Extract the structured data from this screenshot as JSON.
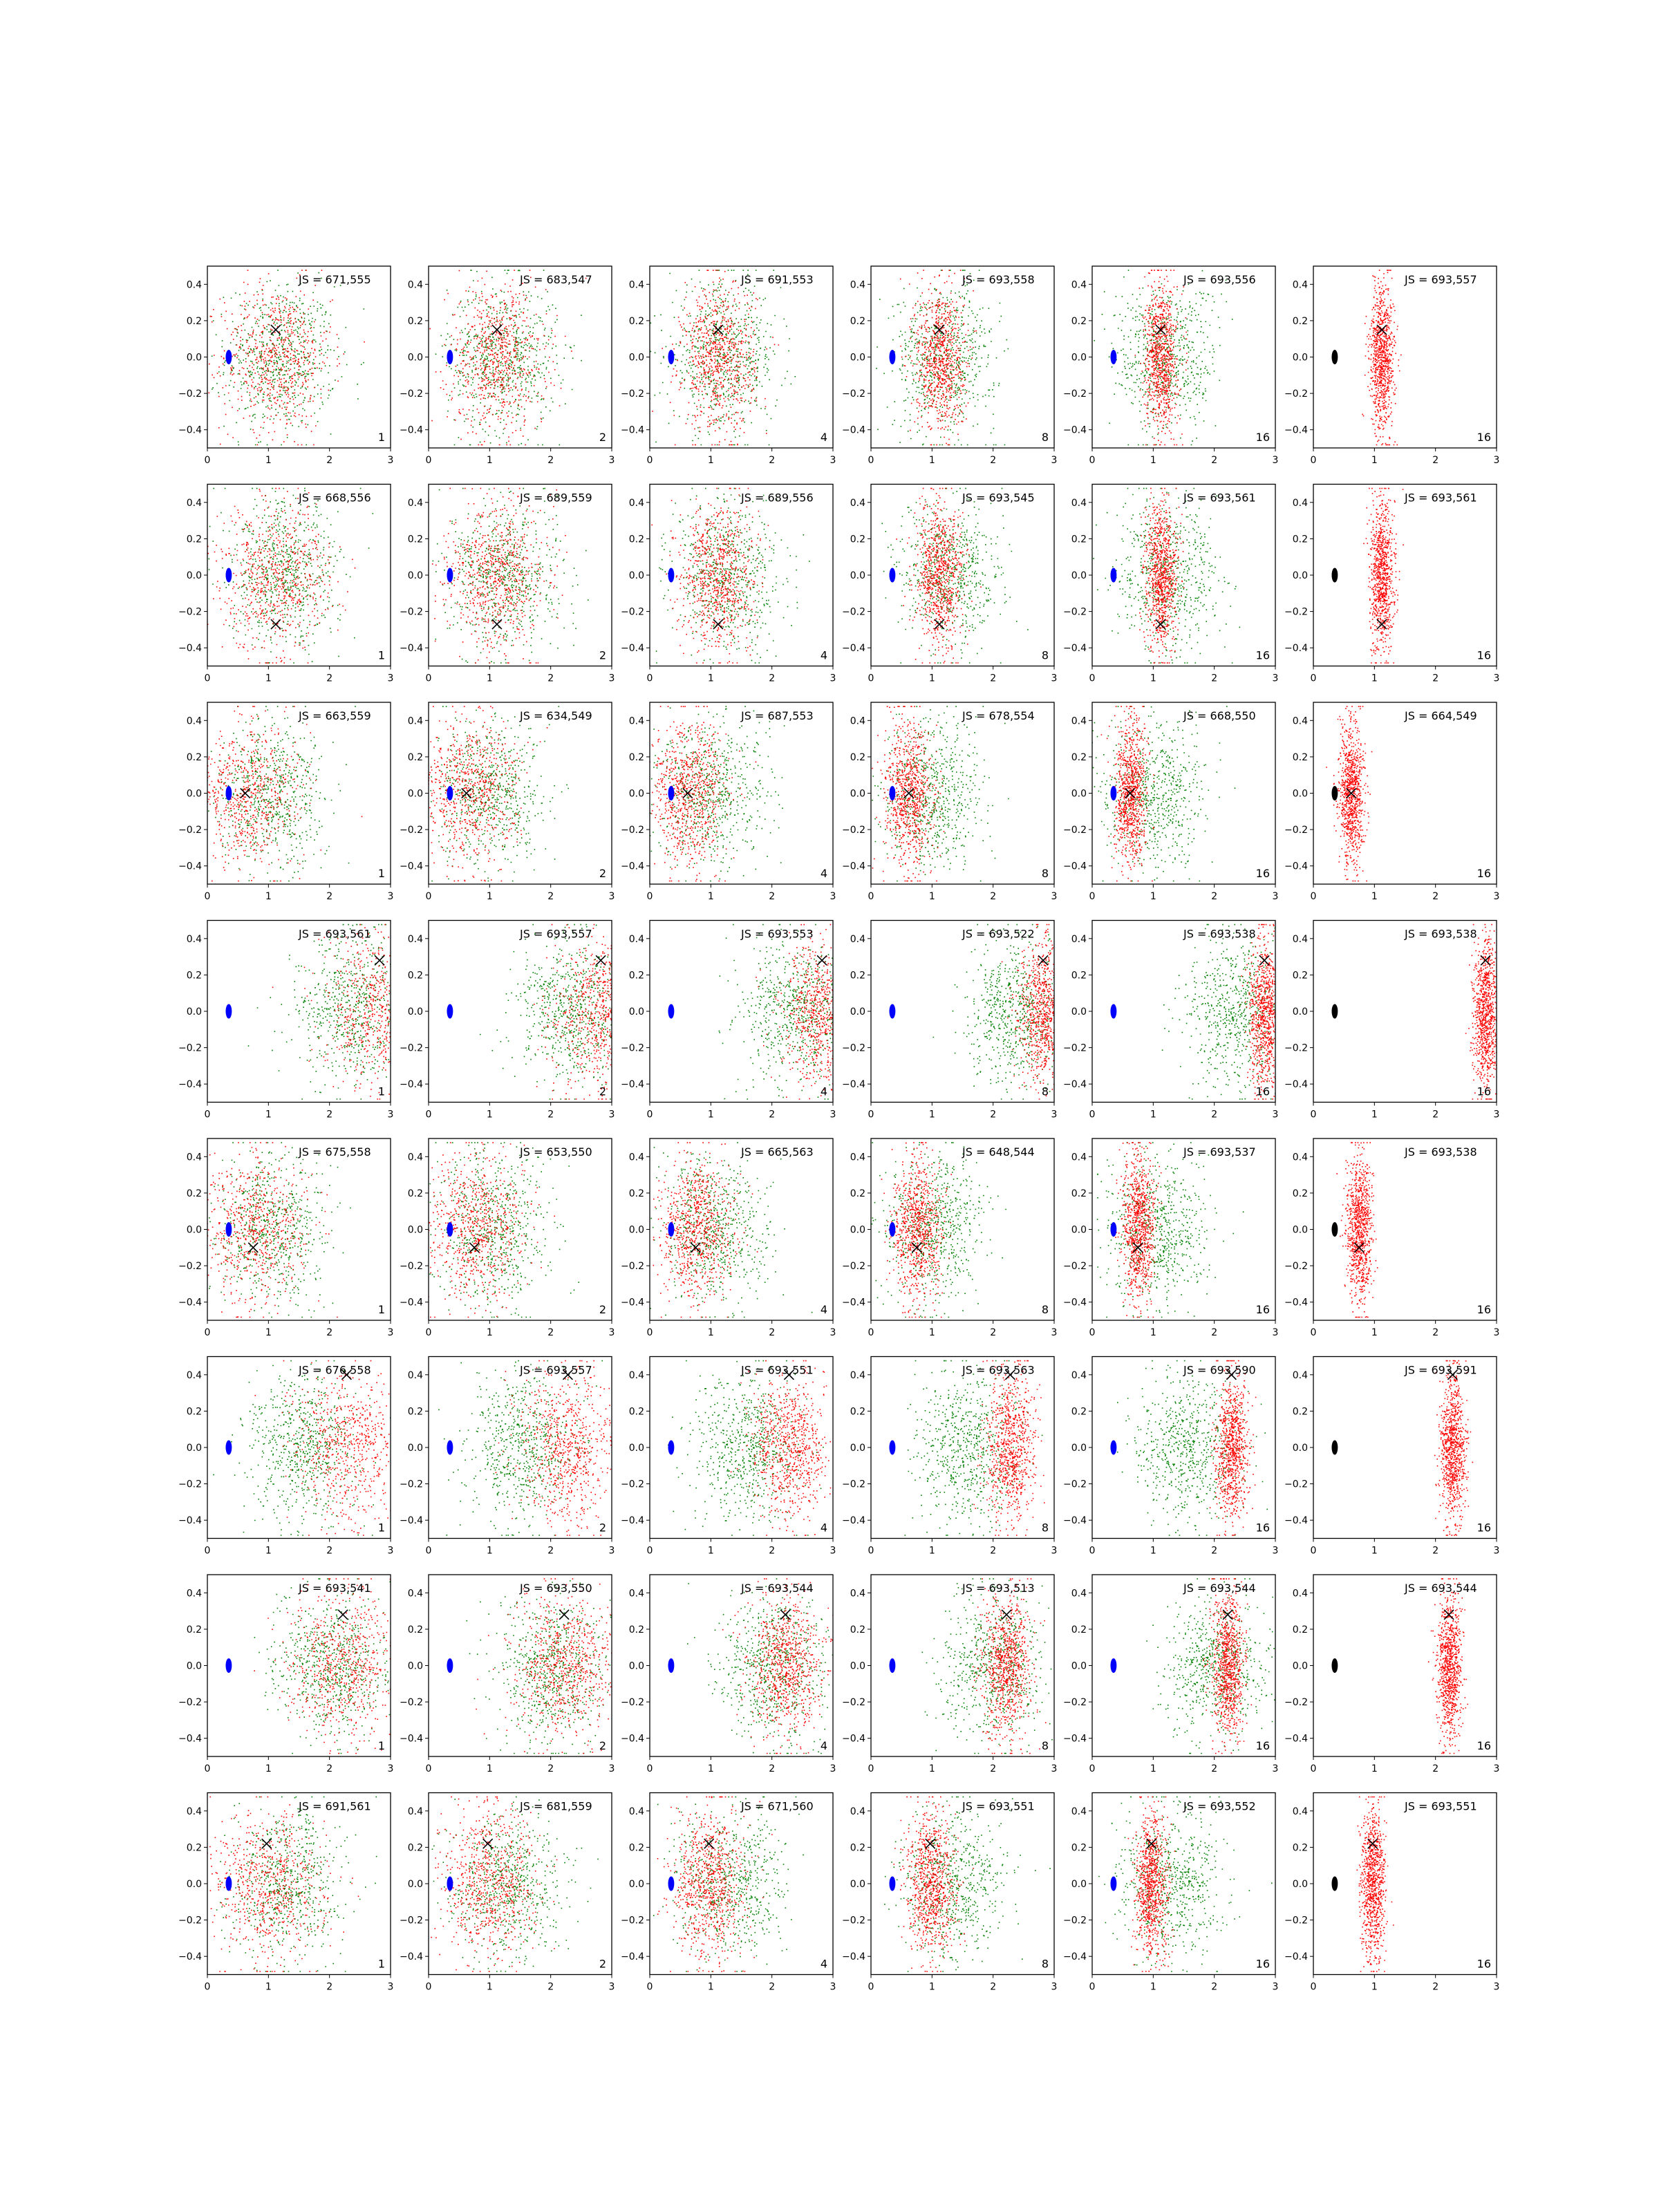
{
  "figure": {
    "rows": 8,
    "cols": 6,
    "colors": {
      "red_points": "#ff0000",
      "green_points": "#008000",
      "blue_ellipse": "#0000ff",
      "black_ellipse": "#000000",
      "cross": "#000000",
      "axes": "#000000"
    }
  },
  "chart_data": {
    "type": "scatter",
    "xlim": [
      0,
      3
    ],
    "ylim": [
      -0.5,
      0.5
    ],
    "xticks": [
      0,
      1,
      2,
      3
    ],
    "yticks": [
      0.4,
      0.2,
      0.0,
      -0.2,
      -0.4
    ],
    "xtick_labels": [
      "0",
      "1",
      "2",
      "3"
    ],
    "ytick_labels": [
      "0.4",
      "0.2",
      "0.0",
      "−0.2",
      "−0.4"
    ],
    "grid": false,
    "rows": [
      {
        "cross": [
          1.12,
          0.15
        ],
        "green_center": 1.2,
        "panels": [
          {
            "js": "JS = 671,555",
            "label": "1"
          },
          {
            "js": "JS = 683,547",
            "label": "2"
          },
          {
            "js": "JS = 691,553",
            "label": "4"
          },
          {
            "js": "JS = 693,558",
            "label": "8"
          },
          {
            "js": "JS = 693,556",
            "label": "16"
          },
          {
            "js": "JS = 693,557",
            "label": "16"
          }
        ]
      },
      {
        "cross": [
          1.12,
          -0.27
        ],
        "green_center": 1.25,
        "panels": [
          {
            "js": "JS = 668,556",
            "label": "1"
          },
          {
            "js": "JS = 689,559",
            "label": "2"
          },
          {
            "js": "JS = 689,556",
            "label": "4"
          },
          {
            "js": "JS = 693,545",
            "label": "8"
          },
          {
            "js": "JS = 693,561",
            "label": "16"
          },
          {
            "js": "JS = 693,561",
            "label": "16"
          }
        ]
      },
      {
        "cross": [
          0.62,
          0.0
        ],
        "green_center": 1.0,
        "panels": [
          {
            "js": "JS = 663,559",
            "label": "1"
          },
          {
            "js": "JS = 634,549",
            "label": "2"
          },
          {
            "js": "JS = 687,553",
            "label": "4"
          },
          {
            "js": "JS = 678,554",
            "label": "8"
          },
          {
            "js": "JS = 668,550",
            "label": "16"
          },
          {
            "js": "JS = 664,549",
            "label": "16"
          }
        ]
      },
      {
        "cross": [
          2.82,
          0.28
        ],
        "green_center": 2.35,
        "panels": [
          {
            "js": "JS = 693,561",
            "label": "1"
          },
          {
            "js": "JS = 693,557",
            "label": "2"
          },
          {
            "js": "JS = 693,553",
            "label": "4"
          },
          {
            "js": "JS = 693,522",
            "label": "8"
          },
          {
            "js": "JS = 693,538",
            "label": "16"
          },
          {
            "js": "JS = 693,538",
            "label": "16"
          }
        ]
      },
      {
        "cross": [
          0.75,
          -0.1
        ],
        "green_center": 1.05,
        "panels": [
          {
            "js": "JS = 675,558",
            "label": "1"
          },
          {
            "js": "JS = 653,550",
            "label": "2"
          },
          {
            "js": "JS = 665,563",
            "label": "4"
          },
          {
            "js": "JS = 648,544",
            "label": "8"
          },
          {
            "js": "JS = 693,537",
            "label": "16"
          },
          {
            "js": "JS = 693,538",
            "label": "16"
          }
        ]
      },
      {
        "cross": [
          2.28,
          0.4
        ],
        "green_center": 1.55,
        "panels": [
          {
            "js": "JS = 676,558",
            "label": "1"
          },
          {
            "js": "JS = 693,557",
            "label": "2"
          },
          {
            "js": "JS = 693,551",
            "label": "4"
          },
          {
            "js": "JS = 693,563",
            "label": "8"
          },
          {
            "js": "JS = 693,590",
            "label": "16"
          },
          {
            "js": "JS = 693,591",
            "label": "16"
          }
        ]
      },
      {
        "cross": [
          2.22,
          0.28
        ],
        "green_center": 2.0,
        "panels": [
          {
            "js": "JS = 693,541",
            "label": "1"
          },
          {
            "js": "JS = 693,550",
            "label": "2"
          },
          {
            "js": "JS = 693,544",
            "label": "4"
          },
          {
            "js": "JS = 693,513",
            "label": "8"
          },
          {
            "js": "JS = 693,544",
            "label": "16"
          },
          {
            "js": "JS = 693,544",
            "label": "16"
          }
        ]
      },
      {
        "cross": [
          0.97,
          0.22
        ],
        "green_center": 1.3,
        "panels": [
          {
            "js": "JS = 691,561",
            "label": "1"
          },
          {
            "js": "JS = 681,559",
            "label": "2"
          },
          {
            "js": "JS = 671,560",
            "label": "4"
          },
          {
            "js": "JS = 693,551",
            "label": "8"
          },
          {
            "js": "JS = 693,552",
            "label": "16"
          },
          {
            "js": "JS = 693,551",
            "label": "16"
          }
        ]
      }
    ],
    "ellipse": {
      "center": [
        0.35,
        0.0
      ],
      "rx": 0.05,
      "ry": 0.04
    }
  }
}
